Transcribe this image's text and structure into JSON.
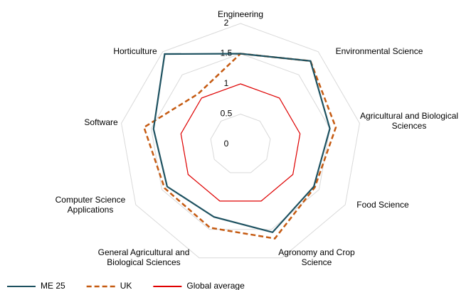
{
  "chart_data": {
    "type": "radar",
    "categories": [
      "Engineering",
      "Environmental Science",
      "Agricultural and Biological Sciences",
      "Food Science",
      "Agronomy and Crop Science",
      "General Agricultural and Biological Sciences",
      "Computer Science Applications",
      "Software",
      "Horticulture"
    ],
    "series": [
      {
        "name": "ME 25",
        "color": "#1d5160",
        "dash": "solid",
        "values": [
          1.5,
          1.8,
          1.5,
          1.4,
          1.55,
          1.28,
          1.4,
          1.46,
          1.95
        ]
      },
      {
        "name": "UK",
        "color": "#c55a11",
        "dash": "dashed",
        "values": [
          1.5,
          1.8,
          1.6,
          1.42,
          1.66,
          1.47,
          1.45,
          1.62,
          1.09
        ]
      },
      {
        "name": "Global average",
        "color": "#e00000",
        "dash": "solid",
        "values": [
          1,
          1,
          1,
          1,
          1,
          1,
          1,
          1,
          1
        ]
      }
    ],
    "ylim": [
      0,
      2
    ],
    "yticks": [
      0,
      0.5,
      1,
      1.5,
      2
    ],
    "grid": true,
    "legend": "bottom-left"
  }
}
